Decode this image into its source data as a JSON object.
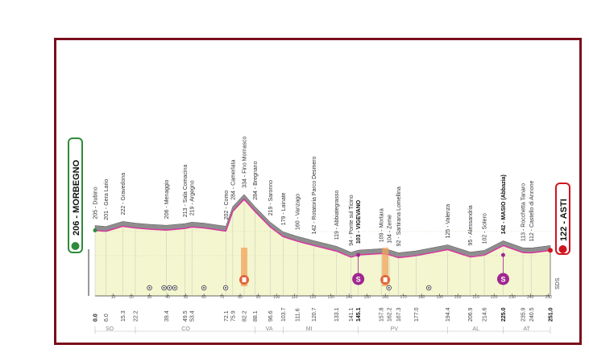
{
  "start": {
    "name": "206 - MORBEGNO",
    "color": "#2e8b3a"
  },
  "finish": {
    "name": "122 - ASTI",
    "color": "#d01420"
  },
  "frame_color": "#7a0e1c",
  "profile_color": "#d63aa0",
  "places": [
    {
      "km": 0.0,
      "label": "205 - Dubino",
      "emph": false
    },
    {
      "km": 6.0,
      "label": "201 - Gera Lario",
      "emph": false
    },
    {
      "km": 15.3,
      "label": "222 - Gravedona",
      "emph": false
    },
    {
      "km": 22.2,
      "label": "",
      "emph": false
    },
    {
      "km": 39.4,
      "label": "206 - Menaggio",
      "emph": false
    },
    {
      "km": 49.5,
      "label": "213 - Sala Comacina",
      "emph": false
    },
    {
      "km": 53.4,
      "label": "219 - Argegno",
      "emph": false
    },
    {
      "km": 72.1,
      "label": "202 - Como",
      "emph": false
    },
    {
      "km": 75.9,
      "label": "284 - Camerlata",
      "emph": false
    },
    {
      "km": 82.2,
      "label": "334 - Fino Mornasco",
      "emph": false
    },
    {
      "km": 88.1,
      "label": "284 - Bregnano",
      "emph": false
    },
    {
      "km": 96.6,
      "label": "219 - Saronno",
      "emph": false
    },
    {
      "km": 103.7,
      "label": "179 - Lainate",
      "emph": false
    },
    {
      "km": 111.6,
      "label": "160 - Vanzago",
      "emph": false
    },
    {
      "km": 120.7,
      "label": "142 - Rotatoria Parco Desmero",
      "emph": false
    },
    {
      "km": 133.1,
      "label": "119 - Abbiategrasso",
      "emph": false
    },
    {
      "km": 141.1,
      "label": "94 - Ponte sul Ticino",
      "emph": false
    },
    {
      "km": 145.1,
      "label": "103 - VIGEVANO",
      "emph": true
    },
    {
      "km": 157.8,
      "label": "109 - Mortara",
      "emph": false
    },
    {
      "km": 162.2,
      "label": "104 - Zeme",
      "emph": false
    },
    {
      "km": 167.3,
      "label": "92 - Sartirana Lomellina",
      "emph": false
    },
    {
      "km": 177.0,
      "label": "",
      "emph": false
    },
    {
      "km": 194.4,
      "label": "125 - Valenza",
      "emph": false
    },
    {
      "km": 206.9,
      "label": "95 - Alessandria",
      "emph": false
    },
    {
      "km": 214.6,
      "label": "102 - Solero",
      "emph": false
    },
    {
      "km": 225.0,
      "label": "142 - MASIO (Abbazia)",
      "emph": true
    },
    {
      "km": 235.9,
      "label": "113 - Rocchetta Tanaro",
      "emph": false
    },
    {
      "km": 240.5,
      "label": "112 - Castello di Annone",
      "emph": false
    },
    {
      "km": 251.0,
      "label": "",
      "emph": true
    }
  ],
  "km_labels": [
    "0.0",
    "6.0",
    "15.3",
    "22.2",
    "39.4",
    "49.5",
    "53.4",
    "72.1",
    "75.9",
    "82.2",
    "88.1",
    "96.6",
    "103.7",
    "111.6",
    "120.7",
    "133.1",
    "141.1",
    "145.1",
    "157.8",
    "162.2",
    "167.3",
    "177.0",
    "194.4",
    "206.9",
    "214.6",
    "225.0",
    "235.9",
    "240.5",
    "251.0"
  ],
  "km_ticks": [
    "10",
    "20",
    "30",
    "40",
    "50",
    "60",
    "70",
    "80",
    "90",
    "100",
    "110",
    "120",
    "130",
    "140",
    "150",
    "160",
    "170",
    "180",
    "190",
    "200",
    "210",
    "220",
    "230",
    "240",
    "250"
  ],
  "regions": [
    "SO",
    "CO",
    "VA",
    "MI",
    "PV",
    "AL",
    "AT"
  ],
  "logo_text": "SDS",
  "sprint_label": "S",
  "km_max": 251.0,
  "elevation_points": [
    [
      0,
      205
    ],
    [
      6,
      201
    ],
    [
      15.3,
      222
    ],
    [
      22.2,
      215
    ],
    [
      30,
      210
    ],
    [
      39.4,
      206
    ],
    [
      49.5,
      213
    ],
    [
      53.4,
      219
    ],
    [
      60,
      215
    ],
    [
      72.1,
      202
    ],
    [
      75.9,
      284
    ],
    [
      82.2,
      334
    ],
    [
      88.1,
      284
    ],
    [
      96.6,
      219
    ],
    [
      103.7,
      179
    ],
    [
      111.6,
      160
    ],
    [
      120.7,
      142
    ],
    [
      133.1,
      119
    ],
    [
      141.1,
      94
    ],
    [
      145.1,
      103
    ],
    [
      157.8,
      109
    ],
    [
      162.2,
      104
    ],
    [
      167.3,
      92
    ],
    [
      177,
      100
    ],
    [
      194.4,
      125
    ],
    [
      206.9,
      95
    ],
    [
      214.6,
      102
    ],
    [
      225,
      142
    ],
    [
      235.9,
      113
    ],
    [
      240.5,
      112
    ],
    [
      251,
      122
    ]
  ]
}
